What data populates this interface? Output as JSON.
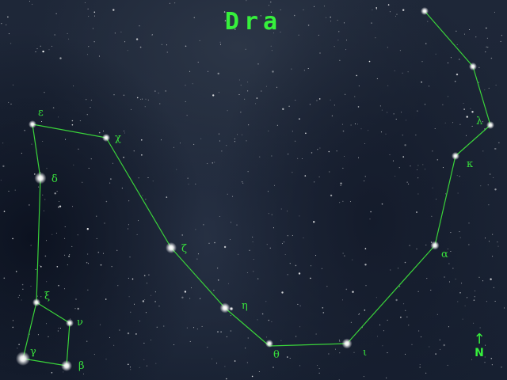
{
  "title": "Dra",
  "compass": {
    "arrow": "↑",
    "label": "N"
  },
  "colors": {
    "line": "#3ad43a",
    "label": "#38e03c",
    "star": "#ffffff",
    "background": "#1b2435"
  },
  "labels": {
    "epsilon": "ε",
    "chi": "χ",
    "delta": "δ",
    "zeta": "ζ",
    "eta": "η",
    "theta": "θ",
    "iota": "ι",
    "alpha": "α",
    "kappa": "κ",
    "lambda": "λ",
    "xi": "ξ",
    "nu": "ν",
    "gamma": "γ",
    "beta": "β"
  }
}
